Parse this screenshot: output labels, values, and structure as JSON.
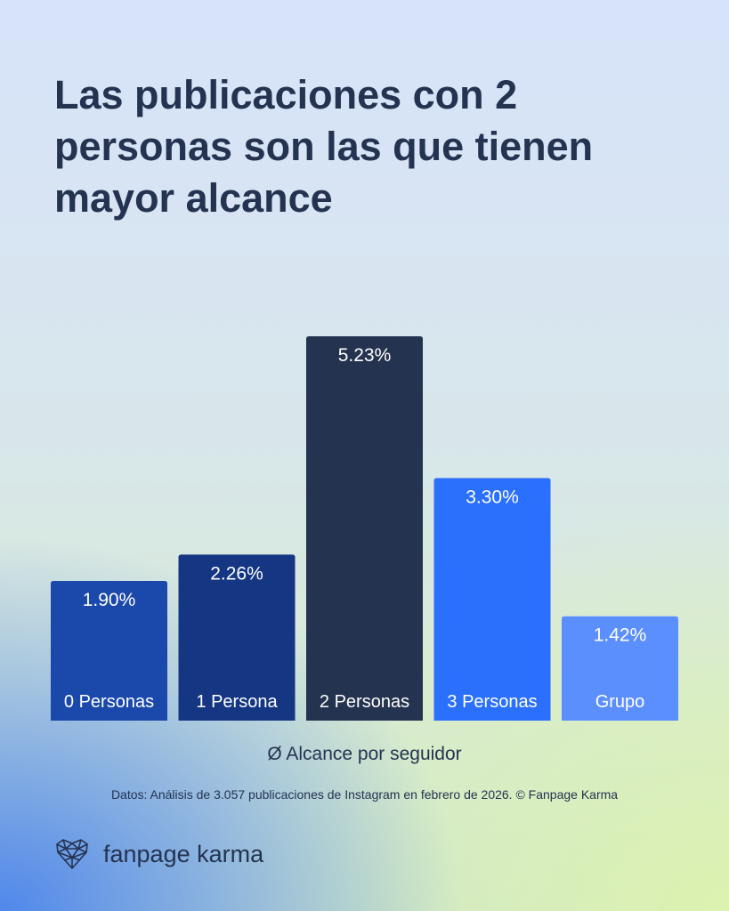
{
  "chart_data": {
    "type": "bar",
    "title": "Las publicaciones con 2 personas son las que tienen mayor alcance",
    "categories": [
      "0 Personas",
      "1 Persona",
      "2 Personas",
      "3 Personas",
      "Grupo"
    ],
    "values": [
      1.9,
      2.26,
      5.23,
      3.3,
      1.42
    ],
    "data_labels": [
      "1.90%",
      "2.26%",
      "5.23%",
      "3.30%",
      "1.42%"
    ],
    "colors": [
      "#1a48ab",
      "#153683",
      "#24334f",
      "#2a70fd",
      "#5b8ffd"
    ],
    "xlabel": "Ø Alcance por seguidor",
    "ylabel": "",
    "ylim": [
      0,
      5.23
    ],
    "grid": false
  },
  "source": "Datos: Análisis de 3.057 publicaciones de Instagram en febrero de 2026. © Fanpage Karma",
  "brand": {
    "name": "fanpage karma",
    "icon": "heart-network-icon"
  }
}
